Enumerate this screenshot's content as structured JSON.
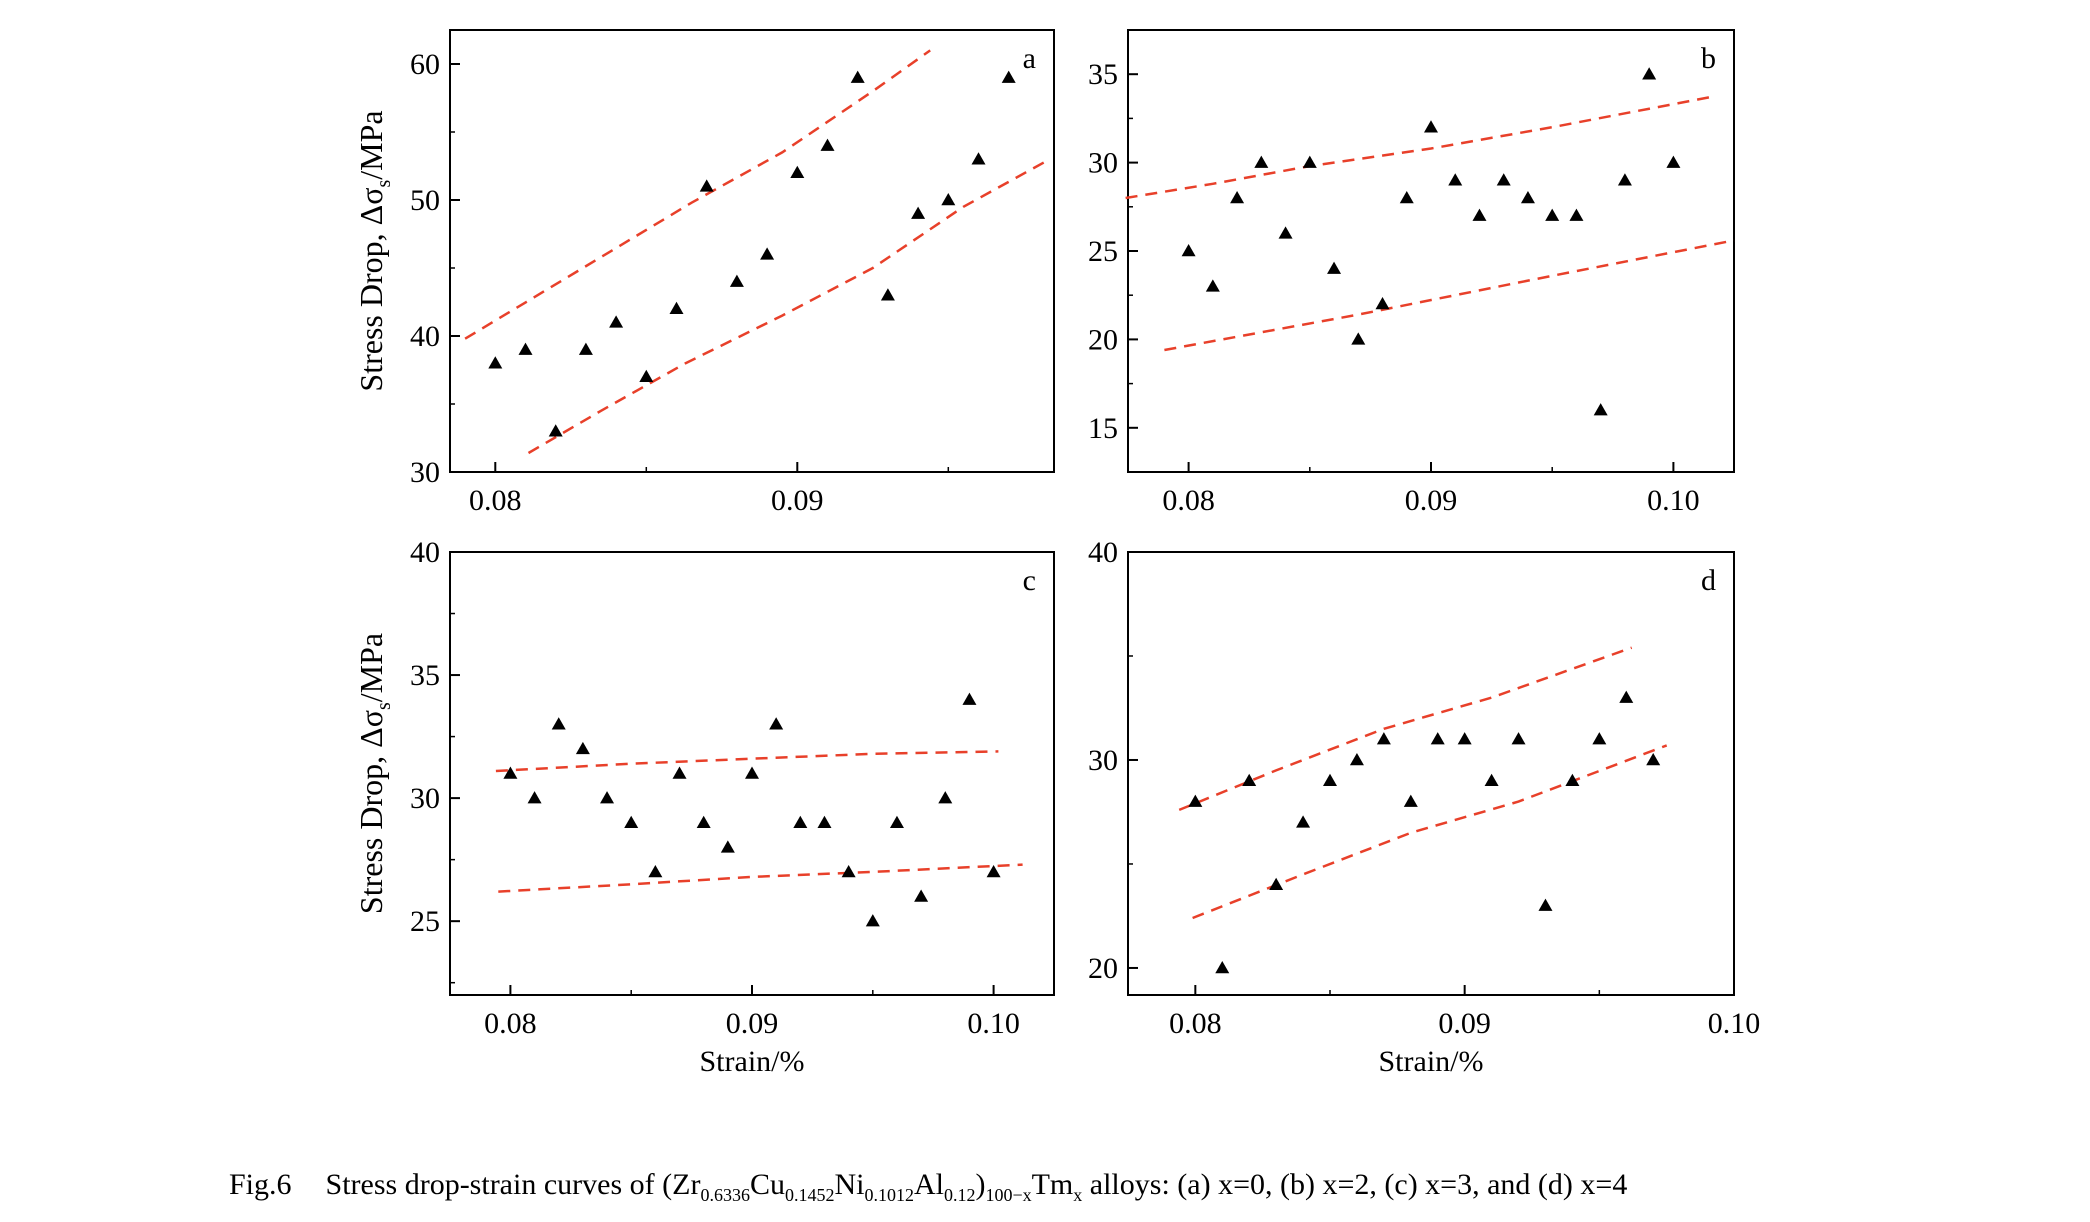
{
  "figure": {
    "ylabel_text": "Stress Drop, Δσ",
    "ylabel_sub": "s",
    "ylabel_unit": "/MPa",
    "xlabel": "Strain/%",
    "trend_color": "#e8402a",
    "point_color": "#000000"
  },
  "caption": {
    "fig_no": "Fig.6",
    "text_1": "Stress drop-strain curves of (Zr",
    "sub_1": "0.6336",
    "text_2": "Cu",
    "sub_2": "0.1452",
    "text_3": "Ni",
    "sub_3": "0.1012",
    "text_4": "Al",
    "sub_4": "0.12",
    "text_5": ")",
    "sub_5": "100−x",
    "text_6": "Tm",
    "sub_6": "x",
    "text_7": " alloys: (a) x=0, (b) x=2, (c) x=3, and (d) x=4"
  },
  "chart_data": [
    {
      "panel": "a",
      "type": "scatter",
      "xlim": [
        0.0785,
        0.0985
      ],
      "ylim": [
        30,
        62.5
      ],
      "xticks": [
        0.08,
        0.09
      ],
      "xtick_labels": [
        "0.08",
        "0.09"
      ],
      "yticks": [
        30,
        40,
        50,
        60
      ],
      "ytick_labels": [
        "30",
        "40",
        "50",
        "60"
      ],
      "show_ylabel": true,
      "show_xlabel": false,
      "points": {
        "x": [
          0.08,
          0.081,
          0.082,
          0.083,
          0.084,
          0.085,
          0.086,
          0.087,
          0.088,
          0.089,
          0.09,
          0.091,
          0.092,
          0.093,
          0.094,
          0.095,
          0.096,
          0.097
        ],
        "y": [
          38,
          39,
          33,
          39,
          41,
          37,
          42,
          51,
          44,
          46,
          52,
          54,
          59,
          43,
          49,
          50,
          53,
          59
        ]
      },
      "upper_band": {
        "x": [
          0.079,
          0.0865,
          0.0895,
          0.0925,
          0.0944
        ],
        "y": [
          39.8,
          49.8,
          53.5,
          58.0,
          61.0
        ]
      },
      "lower_band": {
        "x": [
          0.0811,
          0.0835,
          0.0863,
          0.0895,
          0.0925,
          0.0955,
          0.0982
        ],
        "y": [
          31.4,
          34.5,
          38.0,
          41.5,
          45.0,
          49.5,
          52.8
        ]
      }
    },
    {
      "panel": "b",
      "type": "scatter",
      "xlim": [
        0.0775,
        0.1025
      ],
      "ylim": [
        12.5,
        37.5
      ],
      "xticks": [
        0.08,
        0.09,
        0.1
      ],
      "xtick_labels": [
        "0.08",
        "0.09",
        "0.10"
      ],
      "yticks": [
        15,
        20,
        25,
        30,
        35
      ],
      "ytick_labels": [
        "15",
        "20",
        "25",
        "30",
        "35"
      ],
      "show_ylabel": false,
      "show_xlabel": false,
      "points": {
        "x": [
          0.08,
          0.081,
          0.082,
          0.083,
          0.084,
          0.085,
          0.086,
          0.087,
          0.088,
          0.089,
          0.09,
          0.091,
          0.092,
          0.093,
          0.094,
          0.095,
          0.096,
          0.097,
          0.098,
          0.099,
          0.1
        ],
        "y": [
          25,
          23,
          28,
          30,
          26,
          30,
          24,
          20,
          22,
          28,
          32,
          29,
          27,
          29,
          28,
          27,
          27,
          16,
          29,
          35,
          30
        ]
      },
      "upper_band": {
        "x": [
          0.0774,
          0.081,
          0.085,
          0.09,
          0.095,
          0.1015
        ],
        "y": [
          28.0,
          28.8,
          29.8,
          30.8,
          32.0,
          33.7
        ]
      },
      "lower_band": {
        "x": [
          0.079,
          0.083,
          0.087,
          0.091,
          0.095,
          0.1025
        ],
        "y": [
          19.4,
          20.4,
          21.4,
          22.5,
          23.6,
          25.6
        ]
      }
    },
    {
      "panel": "c",
      "type": "scatter",
      "xlim": [
        0.0775,
        0.1025
      ],
      "ylim": [
        22,
        40
      ],
      "xticks": [
        0.08,
        0.09,
        0.1
      ],
      "xtick_labels": [
        "0.08",
        "0.09",
        "0.10"
      ],
      "yticks": [
        25,
        30,
        35,
        40
      ],
      "ytick_labels": [
        "25",
        "30",
        "35",
        "40"
      ],
      "show_ylabel": true,
      "show_xlabel": true,
      "points": {
        "x": [
          0.08,
          0.081,
          0.082,
          0.083,
          0.084,
          0.085,
          0.086,
          0.087,
          0.088,
          0.089,
          0.09,
          0.091,
          0.092,
          0.093,
          0.094,
          0.095,
          0.096,
          0.097,
          0.098,
          0.099,
          0.1
        ],
        "y": [
          31,
          30,
          33,
          32,
          30,
          29,
          27,
          31,
          29,
          28,
          31,
          33,
          29,
          29,
          27,
          25,
          29,
          26,
          30,
          34,
          27
        ]
      },
      "upper_band": {
        "x": [
          0.0794,
          0.085,
          0.09,
          0.095,
          0.1002
        ],
        "y": [
          31.1,
          31.4,
          31.6,
          31.8,
          31.9
        ]
      },
      "lower_band": {
        "x": [
          0.0795,
          0.085,
          0.09,
          0.095,
          0.1012
        ],
        "y": [
          26.2,
          26.5,
          26.8,
          27.0,
          27.3
        ]
      }
    },
    {
      "panel": "d",
      "type": "scatter",
      "xlim": [
        0.0775,
        0.1
      ],
      "ylim": [
        18.7,
        40
      ],
      "xticks": [
        0.08,
        0.09,
        0.1
      ],
      "xtick_labels": [
        "0.08",
        "0.09",
        "0.10"
      ],
      "yticks": [
        20,
        30,
        40
      ],
      "ytick_labels": [
        "20",
        "30",
        "40"
      ],
      "show_ylabel": false,
      "show_xlabel": true,
      "points": {
        "x": [
          0.08,
          0.081,
          0.082,
          0.083,
          0.084,
          0.085,
          0.086,
          0.087,
          0.088,
          0.089,
          0.09,
          0.091,
          0.092,
          0.093,
          0.094,
          0.095,
          0.096,
          0.097
        ],
        "y": [
          28,
          20,
          29,
          24,
          27,
          29,
          30,
          31,
          28,
          31,
          31,
          29,
          31,
          23,
          29,
          31,
          33,
          30
        ]
      },
      "upper_band": {
        "x": [
          0.0794,
          0.083,
          0.087,
          0.091,
          0.0962
        ],
        "y": [
          27.6,
          29.5,
          31.5,
          33.0,
          35.4
        ]
      },
      "lower_band": {
        "x": [
          0.0799,
          0.084,
          0.088,
          0.092,
          0.0975
        ],
        "y": [
          22.4,
          24.5,
          26.5,
          28.0,
          30.7
        ]
      }
    }
  ]
}
